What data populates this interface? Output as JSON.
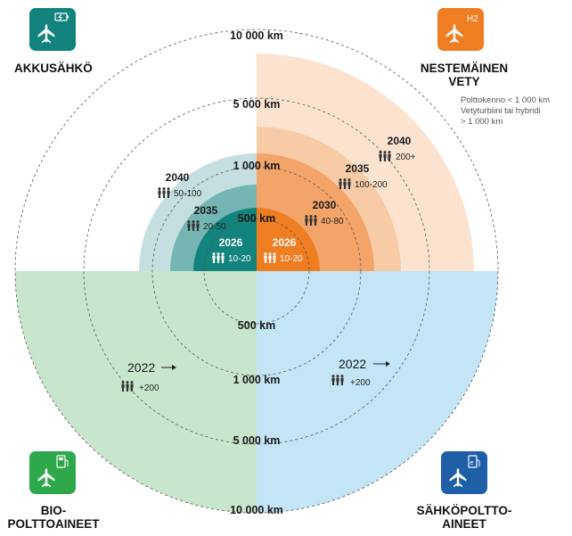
{
  "rings": {
    "r500": "500 km",
    "r1000": "1 000 km",
    "r5000": "5 000 km",
    "r10000": "10 000 km"
  },
  "categories": {
    "battery": {
      "title": "AKKUSÄHKÖ",
      "color": "#12837d"
    },
    "hydrogen": {
      "title_line1": "NESTEMÄINEN",
      "title_line2": "VETY",
      "badge": "H2",
      "color": "#ef7d22",
      "notes": [
        "Polttokenno < 1 000 km",
        "Vetyturbiini tai hybridi",
        "> 1 000 km"
      ]
    },
    "bio": {
      "title_line1": "BIO-",
      "title_line2": "POLTTOAINEET",
      "color": "#2ea84a"
    },
    "efuel": {
      "title_line1": "SÄHKÖPOLTTO-",
      "title_line2": "AINEET",
      "color": "#1f5fa8"
    }
  },
  "battery_milestones": [
    {
      "year": "2026",
      "pax": "10-20"
    },
    {
      "year": "2035",
      "pax": "20-50"
    },
    {
      "year": "2040",
      "pax": "50-100"
    }
  ],
  "hydrogen_milestones": [
    {
      "year": "2026",
      "pax": "10-20"
    },
    {
      "year": "2030",
      "pax": "40-80"
    },
    {
      "year": "2035",
      "pax": "100-200"
    },
    {
      "year": "2040",
      "pax": "200+"
    }
  ],
  "bio_milestone": {
    "year": "2022",
    "pax": "+200"
  },
  "efuel_milestone": {
    "year": "2022",
    "pax": "+200"
  }
}
